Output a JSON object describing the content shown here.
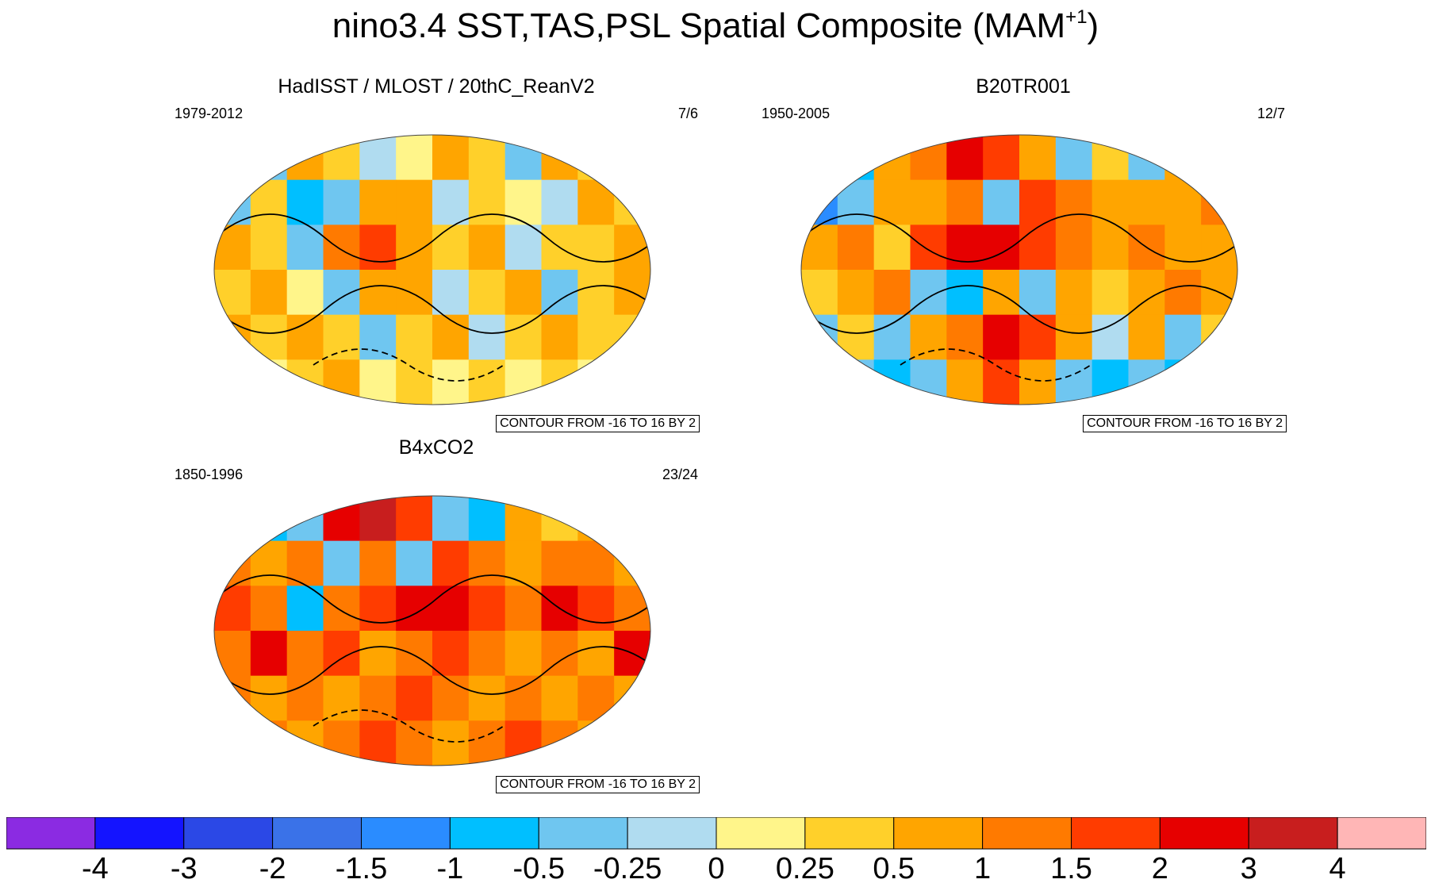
{
  "title_main": "nino3.4 SST,TAS,PSL Spatial Composite (MAM",
  "title_sup": "+1",
  "title_close": ")",
  "chart_data": [
    {
      "type": "heatmap",
      "title": "HadISST / MLOST / 20thC_ReanV2",
      "left_label": "1979-2012",
      "right_label": "7/6",
      "contour_info": "CONTOUR FROM -16 TO 16 BY 2",
      "projection": "robinson",
      "field": [
        [
          0.2,
          -0.5,
          0.5,
          0.25,
          -0.25,
          0.0,
          0.5,
          0.25,
          -0.5,
          0.5,
          0.25,
          1.0
        ],
        [
          -0.5,
          0.25,
          -1.0,
          -0.5,
          0.5,
          0.5,
          -0.25,
          0.25,
          0.0,
          -0.25,
          0.5,
          0.25
        ],
        [
          0.5,
          0.25,
          -0.5,
          1.0,
          1.5,
          0.5,
          0.25,
          0.5,
          -0.25,
          0.25,
          0.25,
          0.5
        ],
        [
          0.25,
          0.5,
          0.0,
          -0.5,
          0.5,
          0.5,
          -0.25,
          0.25,
          0.5,
          -0.5,
          0.25,
          0.5
        ],
        [
          0.5,
          0.25,
          0.5,
          0.25,
          -0.5,
          0.25,
          0.5,
          -0.25,
          0.25,
          0.5,
          0.25,
          0.25
        ],
        [
          0.25,
          0.0,
          0.25,
          0.5,
          0.0,
          0.25,
          0.0,
          0.25,
          0.0,
          0.25,
          0.0,
          0.25
        ]
      ]
    },
    {
      "type": "heatmap",
      "title": "B20TR001",
      "left_label": "1950-2005",
      "right_label": "12/7",
      "contour_info": "CONTOUR FROM -16 TO 16 BY 2",
      "projection": "robinson",
      "field": [
        [
          -2.0,
          -1.0,
          0.5,
          1.0,
          2.0,
          1.5,
          0.5,
          -0.5,
          0.25,
          -0.5,
          0.5,
          0.25
        ],
        [
          -1.5,
          -0.5,
          0.5,
          0.5,
          1.0,
          -0.5,
          1.5,
          1.0,
          0.5,
          0.5,
          0.5,
          1.0
        ],
        [
          0.5,
          1.0,
          0.25,
          1.5,
          2.0,
          2.0,
          1.5,
          1.0,
          0.5,
          1.0,
          0.5,
          0.5
        ],
        [
          0.25,
          0.5,
          1.0,
          -0.5,
          -1.0,
          0.5,
          -0.5,
          0.5,
          0.25,
          0.5,
          1.0,
          0.5
        ],
        [
          -0.5,
          0.25,
          -0.5,
          0.5,
          1.0,
          2.0,
          1.5,
          0.5,
          -0.25,
          0.5,
          -0.5,
          0.25
        ],
        [
          -1.0,
          -0.5,
          -1.0,
          -0.5,
          0.5,
          1.5,
          0.5,
          -0.5,
          -1.0,
          -0.5,
          -1.0,
          -0.5
        ]
      ]
    },
    {
      "type": "heatmap",
      "title": "B4xCO2",
      "left_label": "1850-1996",
      "right_label": "23/24",
      "contour_info": "CONTOUR FROM -16 TO 16 BY 2",
      "projection": "robinson",
      "field": [
        [
          -0.5,
          -1.0,
          -0.5,
          2.0,
          3.0,
          1.5,
          -0.5,
          -1.0,
          0.5,
          0.25,
          0.5,
          0.5
        ],
        [
          1.0,
          0.5,
          1.0,
          -0.5,
          1.0,
          -0.5,
          1.5,
          1.0,
          0.5,
          1.0,
          1.0,
          0.5
        ],
        [
          1.5,
          1.0,
          -1.0,
          1.0,
          1.5,
          2.0,
          2.0,
          1.5,
          1.0,
          2.0,
          1.5,
          1.0
        ],
        [
          1.0,
          2.0,
          1.0,
          1.5,
          0.5,
          1.0,
          1.5,
          1.0,
          0.5,
          1.0,
          0.5,
          2.0
        ],
        [
          1.0,
          0.5,
          1.0,
          0.5,
          1.0,
          1.5,
          1.0,
          0.5,
          1.0,
          0.5,
          1.0,
          0.5
        ],
        [
          1.5,
          1.0,
          0.5,
          1.0,
          1.5,
          1.0,
          0.5,
          1.0,
          1.5,
          1.0,
          0.5,
          1.0
        ]
      ]
    }
  ],
  "colorbar": {
    "colors": [
      "#8b2be2",
      "#1414ff",
      "#2b48e6",
      "#3a72e8",
      "#2a8cff",
      "#00bfff",
      "#6fc6f0",
      "#b0dcf0",
      "#fff58a",
      "#ffd02a",
      "#ffa500",
      "#ff7a00",
      "#ff3c00",
      "#e60000",
      "#c81e1e",
      "#ffb6b6"
    ],
    "labels": [
      "-4",
      "-3",
      "-2",
      "-1.5",
      "-1",
      "-0.5",
      "-0.25",
      "0",
      "0.25",
      "0.5",
      "1",
      "1.5",
      "2",
      "3",
      "4"
    ],
    "levels": [
      -4,
      -3,
      -2,
      -1.5,
      -1,
      -0.5,
      -0.25,
      0,
      0.25,
      0.5,
      1,
      1.5,
      2,
      3,
      4
    ]
  }
}
